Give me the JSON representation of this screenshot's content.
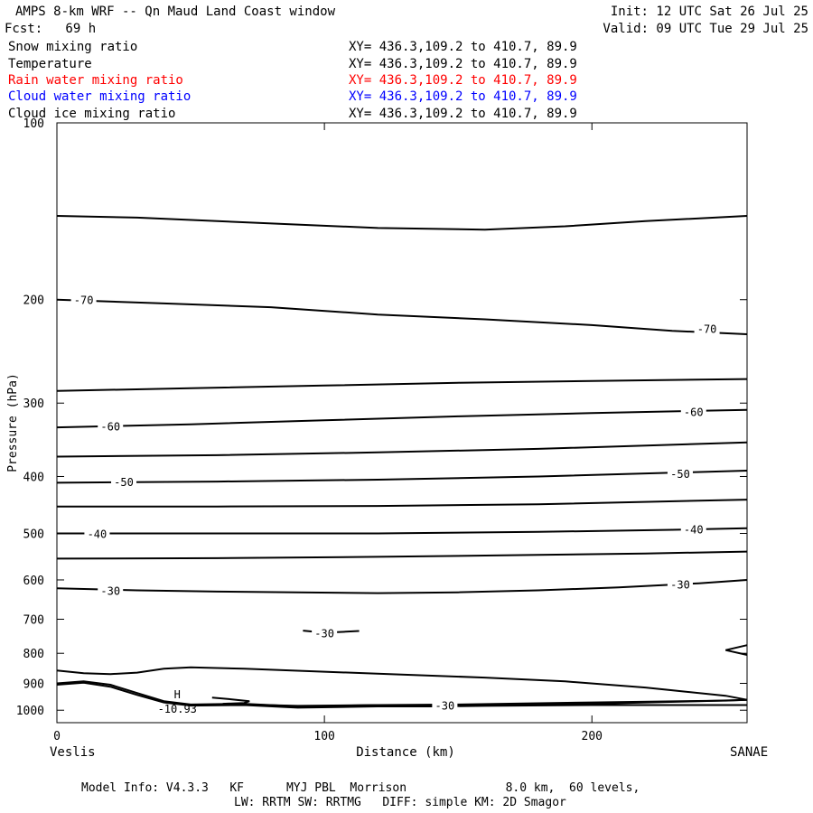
{
  "header": {
    "title": "AMPS 8-km WRF -- Qn Maud Land Coast window",
    "init": "Init: 12 UTC Sat 26 Jul 25",
    "fcst": "Fcst:   69 h",
    "valid": "Valid: 09 UTC Tue 29 Jul 25"
  },
  "fields": [
    {
      "name": "Snow mixing ratio",
      "xy": "XY= 436.3,109.2 to 410.7, 89.9",
      "color": "#000000"
    },
    {
      "name": "Temperature",
      "xy": "XY= 436.3,109.2 to 410.7, 89.9",
      "color": "#000000"
    },
    {
      "name": "Rain water mixing ratio",
      "xy": "XY= 436.3,109.2 to 410.7, 89.9",
      "color": "#ff0000"
    },
    {
      "name": "Cloud water mixing ratio",
      "xy": "XY= 436.3,109.2 to 410.7, 89.9",
      "color": "#0000ff"
    },
    {
      "name": "Cloud ice mixing ratio",
      "xy": "XY= 436.3,109.2 to 410.7, 89.9",
      "color": "#000000"
    }
  ],
  "chart_data": {
    "type": "line",
    "chart_kind": "vertical cross-section contour plot",
    "xlabel": "Distance (km)",
    "ylabel": "Pressure (hPa)",
    "xlim": [
      0,
      258
    ],
    "ylim": [
      1050,
      100
    ],
    "y_scale": "log",
    "x_ticks": [
      0,
      100,
      200
    ],
    "y_ticks": [
      100,
      200,
      300,
      400,
      500,
      600,
      700,
      800,
      900,
      1000
    ],
    "x_endpoints": {
      "left": "Veslis",
      "right": "SANAE"
    },
    "grid": false,
    "contours": [
      {
        "field": "Temperature",
        "value": null,
        "points": [
          [
            0,
            144
          ],
          [
            30,
            145
          ],
          [
            60,
            147
          ],
          [
            90,
            149
          ],
          [
            120,
            151
          ],
          [
            160,
            152
          ],
          [
            190,
            150
          ],
          [
            220,
            147
          ],
          [
            258,
            144
          ]
        ]
      },
      {
        "field": "Temperature",
        "value": -70,
        "points": [
          [
            0,
            200
          ],
          [
            40,
            203
          ],
          [
            80,
            206
          ],
          [
            120,
            212
          ],
          [
            160,
            216
          ],
          [
            200,
            221
          ],
          [
            230,
            226
          ],
          [
            258,
            229
          ]
        ]
      },
      {
        "field": "Temperature",
        "value": null,
        "points": [
          [
            0,
            286
          ],
          [
            50,
            283
          ],
          [
            100,
            280
          ],
          [
            150,
            277
          ],
          [
            200,
            275
          ],
          [
            258,
            273
          ]
        ]
      },
      {
        "field": "Temperature",
        "value": -60,
        "points": [
          [
            0,
            330
          ],
          [
            50,
            326
          ],
          [
            100,
            321
          ],
          [
            150,
            316
          ],
          [
            200,
            312
          ],
          [
            258,
            308
          ]
        ]
      },
      {
        "field": "Temperature",
        "value": null,
        "points": [
          [
            0,
            370
          ],
          [
            60,
            368
          ],
          [
            120,
            364
          ],
          [
            180,
            359
          ],
          [
            258,
            350
          ]
        ]
      },
      {
        "field": "Temperature",
        "value": -50,
        "points": [
          [
            0,
            410
          ],
          [
            60,
            408
          ],
          [
            120,
            405
          ],
          [
            180,
            400
          ],
          [
            258,
            391
          ]
        ]
      },
      {
        "field": "Temperature",
        "value": null,
        "points": [
          [
            0,
            450
          ],
          [
            60,
            450
          ],
          [
            120,
            449
          ],
          [
            180,
            446
          ],
          [
            258,
            438
          ]
        ]
      },
      {
        "field": "Temperature",
        "value": -40,
        "points": [
          [
            0,
            500
          ],
          [
            60,
            500
          ],
          [
            120,
            500
          ],
          [
            180,
            497
          ],
          [
            230,
            493
          ],
          [
            258,
            490
          ]
        ]
      },
      {
        "field": "Temperature",
        "value": null,
        "points": [
          [
            0,
            552
          ],
          [
            60,
            551
          ],
          [
            120,
            548
          ],
          [
            180,
            544
          ],
          [
            220,
            541
          ],
          [
            258,
            537
          ]
        ]
      },
      {
        "field": "Temperature",
        "value": -30,
        "points": [
          [
            0,
            620
          ],
          [
            30,
            625
          ],
          [
            60,
            628
          ],
          [
            90,
            630
          ],
          [
            120,
            632
          ],
          [
            150,
            630
          ],
          [
            180,
            625
          ],
          [
            210,
            618
          ],
          [
            240,
            608
          ],
          [
            258,
            600
          ]
        ]
      },
      {
        "field": "Temperature",
        "value": null,
        "points": [
          [
            0,
            856
          ],
          [
            10,
            865
          ],
          [
            20,
            868
          ],
          [
            30,
            863
          ],
          [
            40,
            850
          ],
          [
            50,
            845
          ],
          [
            70,
            850
          ],
          [
            100,
            860
          ],
          [
            130,
            870
          ],
          [
            160,
            880
          ],
          [
            190,
            893
          ],
          [
            220,
            915
          ],
          [
            250,
            945
          ],
          [
            258,
            960
          ],
          [
            250,
            963
          ],
          [
            200,
            970
          ],
          [
            150,
            978
          ],
          [
            120,
            980
          ],
          [
            90,
            983
          ],
          [
            70,
            978
          ],
          [
            55,
            980
          ]
        ]
      },
      {
        "field": "Temperature",
        "value": null,
        "points": [
          [
            0,
            900
          ],
          [
            10,
            893
          ],
          [
            20,
            905
          ],
          [
            30,
            935
          ],
          [
            40,
            965
          ],
          [
            50,
            978
          ],
          [
            70,
            975
          ],
          [
            90,
            985
          ],
          [
            120,
            980
          ],
          [
            140,
            982
          ],
          [
            170,
            978
          ],
          [
            200,
            975
          ],
          [
            240,
            965
          ],
          [
            258,
            960
          ]
        ]
      },
      {
        "field": "Temperature",
        "value": null,
        "points": [
          [
            0,
            905
          ],
          [
            10,
            898
          ],
          [
            20,
            912
          ],
          [
            30,
            942
          ],
          [
            40,
            970
          ],
          [
            50,
            982
          ],
          [
            70,
            980
          ],
          [
            90,
            990
          ],
          [
            120,
            985
          ],
          [
            140,
            985
          ],
          [
            160,
            983
          ],
          [
            200,
            980
          ],
          [
            258,
            980
          ]
        ]
      },
      {
        "field": "Temperature",
        "value": null,
        "points": [
          [
            58,
            952
          ],
          [
            65,
            958
          ],
          [
            72,
            965
          ],
          [
            70,
            972
          ],
          [
            62,
            975
          ]
        ]
      },
      {
        "field": "Temperature",
        "value": null,
        "points": [
          [
            258,
            775
          ],
          [
            250,
            790
          ],
          [
            258,
            805
          ]
        ]
      },
      {
        "field": "Temperature",
        "value": null,
        "points": [
          [
            92,
            732
          ],
          [
            100,
            738
          ],
          [
            108,
            735
          ],
          [
            113,
            733
          ]
        ]
      }
    ],
    "contour_labels": [
      {
        "text": "-70",
        "x": 10,
        "y": 200
      },
      {
        "text": "-70",
        "x": 243,
        "y": 224
      },
      {
        "text": "-60",
        "x": 20,
        "y": 328
      },
      {
        "text": "-60",
        "x": 238,
        "y": 310
      },
      {
        "text": "-50",
        "x": 25,
        "y": 408
      },
      {
        "text": "-50",
        "x": 233,
        "y": 395
      },
      {
        "text": "-40",
        "x": 15,
        "y": 500
      },
      {
        "text": "-40",
        "x": 238,
        "y": 491
      },
      {
        "text": "-30",
        "x": 20,
        "y": 625
      },
      {
        "text": "-30",
        "x": 233,
        "y": 610
      },
      {
        "text": "-30",
        "x": 100,
        "y": 738
      },
      {
        "text": "-30",
        "x": 145,
        "y": 980
      }
    ],
    "extremum": {
      "letter": "H",
      "value_text": "-10.93",
      "x": 45,
      "y": 955
    }
  },
  "footer": {
    "line1": "Model Info: V4.3.3   KF      MYJ PBL  Morrison              8.0 km,  60 levels,",
    "line2": "LW: RRTM SW: RRTMG   DIFF: simple KM: 2D Smagor"
  }
}
